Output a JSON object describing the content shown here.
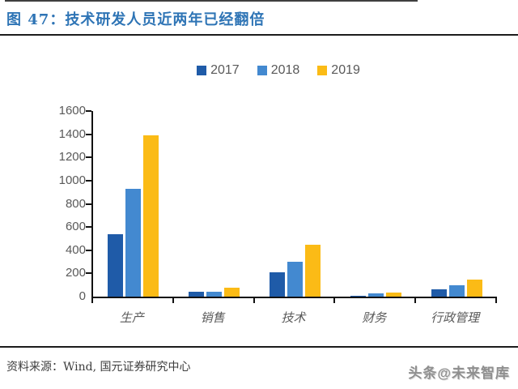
{
  "figure": {
    "title": "图 47：技术研发人员近两年已经翻倍"
  },
  "footer": {
    "source": "资料来源：Wind, 国元证券研究中心",
    "watermark": "头条@未来智库"
  },
  "colors": {
    "title_blue": "#2E74B5",
    "series_2017": "#1F5BA8",
    "series_2018": "#4389D0",
    "series_2019": "#FBBB16",
    "axis_text_gray": "#595959",
    "rule_dark": "#1C1C1C"
  },
  "chart_data": {
    "type": "bar",
    "title": "",
    "xlabel": "",
    "ylabel": "",
    "categories": [
      "生产",
      "销售",
      "技术",
      "财务",
      "行政管理"
    ],
    "series": [
      {
        "name": "2017",
        "color": "#1F5BA8",
        "values": [
          540,
          45,
          210,
          5,
          65
        ]
      },
      {
        "name": "2018",
        "color": "#4389D0",
        "values": [
          930,
          40,
          300,
          25,
          100
        ]
      },
      {
        "name": "2019",
        "color": "#FBBB16",
        "values": [
          1390,
          75,
          450,
          35,
          150
        ]
      }
    ],
    "ylim": [
      0,
      1600
    ],
    "yticks": [
      0,
      200,
      400,
      600,
      800,
      1000,
      1200,
      1400,
      1600
    ],
    "grid": false,
    "legend_position": "top"
  }
}
